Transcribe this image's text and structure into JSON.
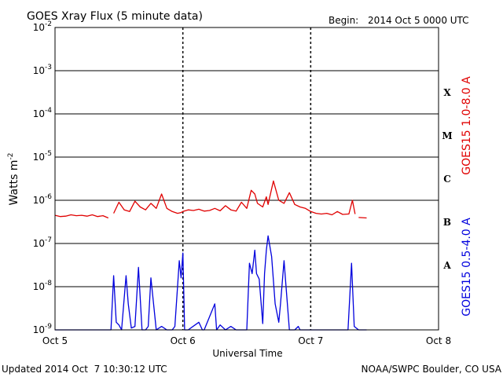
{
  "chart_data": {
    "type": "line",
    "title": "GOES Xray Flux (5 minute data)",
    "begin_label": "Begin:",
    "begin_value": "2014 Oct 5 0000 UTC",
    "xlabel": "Universal Time",
    "ylabel_base": "Watts m",
    "ylabel_exp": "-2",
    "y_scale": "log",
    "ylim": [
      1e-09,
      0.01
    ],
    "xlim": [
      "2014-10-05T00:00",
      "2014-10-08T00:00"
    ],
    "x_ticks": [
      "Oct 5",
      "Oct 6",
      "Oct 7",
      "Oct 8"
    ],
    "y_ticks": [
      {
        "base": "10",
        "exp": "-2",
        "value": 0.01
      },
      {
        "base": "10",
        "exp": "-3",
        "value": 0.001
      },
      {
        "base": "10",
        "exp": "-4",
        "value": 0.0001
      },
      {
        "base": "10",
        "exp": "-5",
        "value": 1e-05
      },
      {
        "base": "10",
        "exp": "-6",
        "value": 1e-06
      },
      {
        "base": "10",
        "exp": "-7",
        "value": 1e-07
      },
      {
        "base": "10",
        "exp": "-8",
        "value": 1e-08
      },
      {
        "base": "10",
        "exp": "-9",
        "value": 1e-09
      }
    ],
    "flare_classes": [
      {
        "label": "X",
        "value": 0.00031
      },
      {
        "label": "M",
        "value": 3.1e-05
      },
      {
        "label": "C",
        "value": 3.1e-06
      },
      {
        "label": "B",
        "value": 3.1e-07
      },
      {
        "label": "A",
        "value": 3.1e-08
      }
    ],
    "grid": true,
    "series": [
      {
        "name": "GOES15 1.0-8.0 A",
        "color": "#e00000",
        "x": [
          "2014-10-05T00:00",
          "2014-10-05T01:00",
          "2014-10-05T02:00",
          "2014-10-05T03:00",
          "2014-10-05T04:00",
          "2014-10-05T05:00",
          "2014-10-05T06:00",
          "2014-10-05T07:00",
          "2014-10-05T08:00",
          "2014-10-05T09:00",
          "2014-10-05T10:00",
          null,
          "2014-10-05T11:00",
          "2014-10-05T12:00",
          "2014-10-05T13:00",
          "2014-10-05T14:00",
          "2014-10-05T15:00",
          "2014-10-05T16:00",
          "2014-10-05T17:00",
          "2014-10-05T18:00",
          "2014-10-05T19:00",
          "2014-10-05T20:00",
          "2014-10-05T21:00",
          "2014-10-05T22:00",
          "2014-10-05T23:00",
          "2014-10-05T23:40",
          "2014-10-06T00:00",
          "2014-10-06T01:00",
          "2014-10-06T02:00",
          "2014-10-06T03:00",
          "2014-10-06T04:00",
          "2014-10-06T05:00",
          "2014-10-06T06:00",
          "2014-10-06T07:00",
          "2014-10-06T08:00",
          "2014-10-06T09:00",
          "2014-10-06T10:00",
          "2014-10-06T11:00",
          "2014-10-06T12:00",
          "2014-10-06T12:50",
          "2014-10-06T13:30",
          "2014-10-06T14:00",
          "2014-10-06T15:00",
          "2014-10-06T15:40",
          "2014-10-06T16:00",
          "2014-10-06T16:30",
          "2014-10-06T17:00",
          "2014-10-06T18:00",
          "2014-10-06T19:00",
          "2014-10-06T20:00",
          "2014-10-06T21:00",
          "2014-10-06T22:00",
          "2014-10-06T23:00",
          "2014-10-07T00:00",
          "2014-10-07T01:00",
          "2014-10-07T02:00",
          "2014-10-07T03:00",
          "2014-10-07T04:00",
          "2014-10-07T05:00",
          "2014-10-07T06:00",
          "2014-10-07T07:00",
          "2014-10-07T07:10",
          "2014-10-07T07:50",
          "2014-10-07T08:20",
          null,
          "2014-10-07T09:00",
          "2014-10-07T10:30"
        ],
        "values": [
          4.5e-07,
          4.2e-07,
          4.3e-07,
          4.6e-07,
          4.4e-07,
          4.5e-07,
          4.3e-07,
          4.6e-07,
          4.2e-07,
          4.4e-07,
          3.9e-07,
          null,
          5e-07,
          9e-07,
          6e-07,
          5.5e-07,
          9.5e-07,
          7e-07,
          6e-07,
          8.5e-07,
          6.5e-07,
          1.4e-06,
          6.5e-07,
          5.5e-07,
          5e-07,
          5.2e-07,
          5.5e-07,
          6e-07,
          5.8e-07,
          6.2e-07,
          5.6e-07,
          5.8e-07,
          6.5e-07,
          5.7e-07,
          7.5e-07,
          6e-07,
          5.6e-07,
          9e-07,
          6.5e-07,
          1.7e-06,
          1.4e-06,
          8.5e-07,
          7e-07,
          1.2e-06,
          8e-07,
          1.5e-06,
          2.8e-06,
          1e-06,
          8.5e-07,
          1.5e-06,
          8e-07,
          7e-07,
          6.5e-07,
          5.5e-07,
          5e-07,
          4.8e-07,
          5e-07,
          4.6e-07,
          5.5e-07,
          4.7e-07,
          4.8e-07,
          4.8e-07,
          1e-06,
          4.8e-07,
          null,
          4e-07,
          3.9e-07
        ]
      },
      {
        "name": "GOES15 0.5-4.0 A",
        "color": "#0000dd",
        "x": [
          "2014-10-05T00:00",
          "2014-10-05T10:30",
          "2014-10-05T11:00",
          "2014-10-05T11:30",
          "2014-10-05T12:00",
          "2014-10-05T12:30",
          "2014-10-05T13:20",
          "2014-10-05T13:45",
          "2014-10-05T14:20",
          "2014-10-05T15:00",
          "2014-10-05T15:40",
          "2014-10-05T16:20",
          "2014-10-05T17:00",
          "2014-10-05T17:30",
          "2014-10-05T18:00",
          "2014-10-05T19:00",
          "2014-10-05T20:00",
          "2014-10-05T21:00",
          "2014-10-05T22:00",
          "2014-10-05T22:30",
          "2014-10-05T23:00",
          "2014-10-05T23:20",
          "2014-10-05T23:40",
          "2014-10-06T00:00",
          "2014-10-06T00:20",
          "2014-10-06T01:00",
          "2014-10-06T03:00",
          "2014-10-06T03:40",
          "2014-10-06T04:00",
          "2014-10-06T06:00",
          "2014-10-06T06:20",
          "2014-10-06T07:00",
          "2014-10-06T08:00",
          "2014-10-06T09:00",
          "2014-10-06T10:00",
          "2014-10-06T12:00",
          "2014-10-06T12:30",
          "2014-10-06T13:00",
          "2014-10-06T13:30",
          "2014-10-06T13:50",
          "2014-10-06T14:20",
          "2014-10-06T15:00",
          "2014-10-06T15:20",
          "2014-10-06T15:40",
          "2014-10-06T16:00",
          "2014-10-06T16:40",
          "2014-10-06T17:20",
          "2014-10-06T18:00",
          "2014-10-06T18:20",
          "2014-10-06T19:00",
          "2014-10-06T20:00",
          "2014-10-06T21:00",
          "2014-10-06T21:40",
          "2014-10-06T22:00",
          "2014-10-06T23:00",
          "2014-10-07T00:00",
          "2014-10-07T03:00",
          "2014-10-07T06:00",
          "2014-10-07T07:00",
          "2014-10-07T07:40",
          "2014-10-07T08:10",
          "2014-10-07T09:00",
          "2014-10-07T10:30"
        ],
        "values": [
          1e-09,
          1e-09,
          1.8e-08,
          1.5e-09,
          1.3e-09,
          1e-09,
          1.8e-08,
          4e-09,
          1.1e-09,
          1.2e-09,
          2.8e-08,
          1e-09,
          1e-09,
          1.2e-09,
          1.6e-08,
          1e-09,
          1.2e-09,
          1e-09,
          1e-09,
          1.2e-09,
          1e-08,
          4e-08,
          1.6e-08,
          6e-08,
          1e-09,
          1e-09,
          1.5e-09,
          1e-09,
          1e-09,
          4e-09,
          1e-09,
          1.3e-09,
          1e-09,
          1.2e-09,
          1e-09,
          1e-09,
          3.5e-08,
          2e-08,
          7e-08,
          2e-08,
          1.5e-08,
          1.4e-09,
          2e-08,
          7e-08,
          1.5e-07,
          5e-08,
          4e-09,
          1.5e-09,
          4e-09,
          4e-08,
          1e-09,
          1e-09,
          1.2e-09,
          1e-09,
          1e-09,
          1e-09,
          1e-09,
          1e-09,
          1e-09,
          3.5e-08,
          1.2e-09,
          1e-09,
          1e-09
        ]
      }
    ]
  },
  "footer": {
    "updated": "Updated 2014 Oct  7 10:30:12 UTC",
    "credit": "NOAA/SWPC Boulder, CO USA"
  }
}
